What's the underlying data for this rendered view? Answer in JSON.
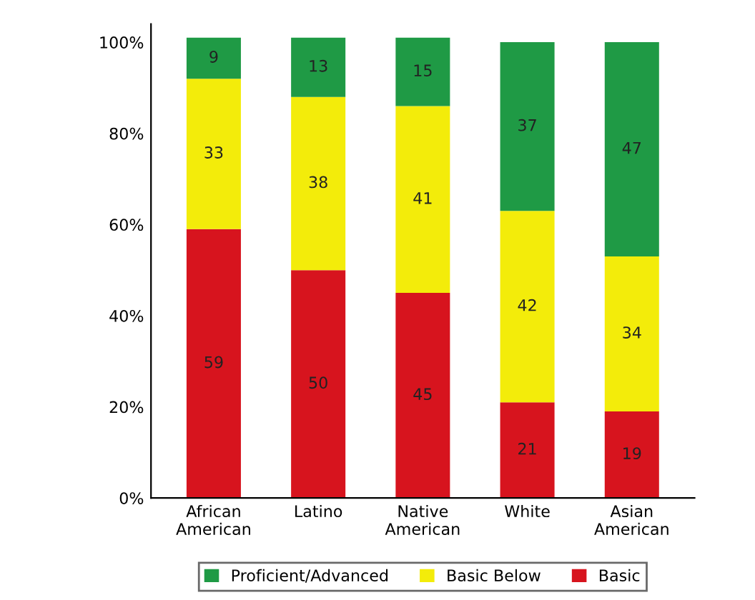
{
  "chart_data": {
    "type": "bar",
    "stacked": true,
    "categories": [
      "African\nAmerican",
      "Latino",
      "Native\nAmerican",
      "White",
      "Asian\nAmerican"
    ],
    "series": [
      {
        "name": "Basic",
        "color": "#d7141e",
        "values": [
          59,
          50,
          45,
          21,
          19
        ]
      },
      {
        "name": "Basic Below",
        "color": "#f3ec0a",
        "values": [
          33,
          38,
          41,
          42,
          34
        ]
      },
      {
        "name": "Proficient/Advanced",
        "color": "#1f9a45",
        "values": [
          9,
          13,
          15,
          37,
          47
        ]
      }
    ],
    "ylim": [
      0,
      104
    ],
    "yticks": [
      {
        "value": 0,
        "label": "0%"
      },
      {
        "value": 20,
        "label": "20%"
      },
      {
        "value": 40,
        "label": "40%"
      },
      {
        "value": 60,
        "label": "60%"
      },
      {
        "value": 80,
        "label": "80%"
      },
      {
        "value": 100,
        "label": "100%"
      }
    ],
    "data_labels": true,
    "grid": false,
    "legend": "bottom"
  }
}
